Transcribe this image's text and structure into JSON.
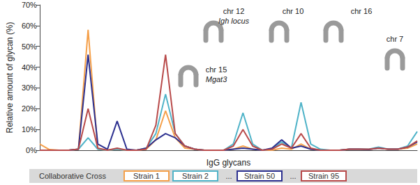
{
  "chart_data": {
    "type": "line",
    "x_label": "IgG glycans",
    "y_label": "Relative amount of glycan (%)",
    "categories": [
      null,
      null,
      null,
      null,
      null,
      null,
      null,
      null,
      null,
      null,
      null,
      null,
      null,
      null,
      null,
      null,
      null,
      null,
      null,
      null,
      null,
      null,
      null,
      null,
      null,
      null,
      null,
      null,
      null,
      null,
      null,
      null,
      null,
      null,
      null,
      null,
      null,
      null,
      null,
      null
    ],
    "series": [
      {
        "name": "Strain 1",
        "color": "#f5a04a",
        "values": [
          3,
          0.3,
          0,
          0,
          0.5,
          58,
          0.5,
          0,
          0.5,
          0,
          0,
          0.5,
          5,
          19,
          6,
          1,
          0.5,
          0,
          0,
          0,
          0.5,
          2,
          0.5,
          0,
          0,
          1,
          0.5,
          3,
          0.5,
          0,
          0,
          0,
          0.5,
          0.5,
          0.3,
          1,
          0.5,
          0.5,
          1,
          3
        ]
      },
      {
        "name": "Strain 2",
        "color": "#4fb3c8",
        "values": [
          0,
          0,
          0,
          0,
          0.5,
          6,
          0.5,
          0,
          0.5,
          0,
          0,
          1,
          8,
          27,
          8,
          2,
          0.5,
          0,
          0,
          0,
          3,
          18,
          3,
          0,
          0.5,
          4,
          1,
          23,
          3,
          0.5,
          0,
          0,
          0.5,
          0.5,
          0.5,
          1.5,
          0.5,
          0.5,
          2,
          9
        ]
      },
      {
        "name": "Strain 50",
        "color": "#2b2f8f",
        "values": [
          0,
          0,
          0,
          0,
          0.5,
          46,
          3,
          0.5,
          14,
          0.5,
          0,
          1,
          5,
          8,
          6,
          2,
          0.5,
          0,
          0,
          0,
          0.5,
          1,
          0.5,
          0,
          1,
          5,
          1,
          2,
          0.5,
          0,
          0,
          0,
          0.5,
          0.5,
          0.3,
          1,
          0.5,
          0.5,
          1.5,
          4
        ]
      },
      {
        "name": "Strain 95",
        "color": "#b84a4a",
        "values": [
          0,
          0,
          0,
          0,
          0.5,
          20,
          1,
          0,
          1,
          0,
          0,
          0.5,
          12,
          46,
          8,
          2,
          0.5,
          0,
          0,
          0,
          2,
          10,
          2,
          0,
          0.5,
          3,
          1,
          8,
          1,
          0,
          0,
          0,
          0.5,
          0.5,
          0.5,
          1,
          0.5,
          0.5,
          1.5,
          4.5
        ]
      }
    ],
    "ylim": [
      0,
      70
    ],
    "yticks": [
      {
        "value": 0,
        "label": "0%"
      },
      {
        "value": 10,
        "label": "10%"
      },
      {
        "value": 20,
        "label": "20%"
      },
      {
        "value": 30,
        "label": "30%"
      },
      {
        "value": 40,
        "label": "40%"
      },
      {
        "value": 50,
        "label": "50%"
      },
      {
        "value": 60,
        "label": "60%"
      },
      {
        "value": 70,
        "label": "70%"
      }
    ],
    "tick_labels": "y",
    "grid": false,
    "legend": "bottom",
    "legend_title": "Collaborative Cross",
    "legend_gap_text": "...",
    "annotations": [
      {
        "label": "chr 12",
        "sublabel": "Igh locus"
      },
      {
        "label": "chr 15",
        "sublabel": "Mgat3"
      },
      {
        "label": "chr 10"
      },
      {
        "label": "chr 16"
      },
      {
        "label": "chr 7"
      }
    ]
  }
}
